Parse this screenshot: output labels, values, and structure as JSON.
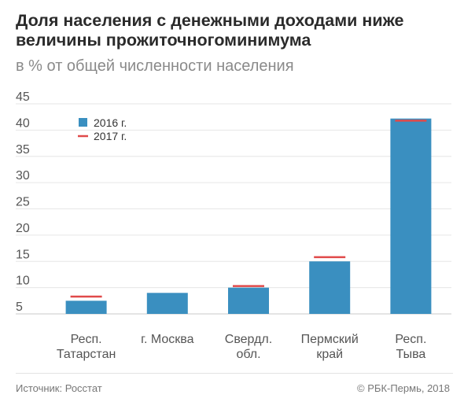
{
  "header": {
    "title": "Доля населения с денежными доходами ниже величины прожиточногоминимума",
    "subtitle": "в % от общей численности населения"
  },
  "footer": {
    "source": "Источник: Росстат",
    "copyright": "© РБК-Пермь, 2018"
  },
  "colors": {
    "bar_2016": "#3a8fc0",
    "marker_2017": "#e04a4a",
    "grid": "#e6e6e6",
    "axis": "#c8c8c8"
  },
  "chart_data": {
    "type": "bar",
    "categories": [
      [
        "Респ.",
        "Татарстан"
      ],
      [
        "г. Москва"
      ],
      [
        "Свердл.",
        "обл."
      ],
      [
        "Пермский",
        "край"
      ],
      [
        "Респ.",
        "Тыва"
      ]
    ],
    "series": [
      {
        "name": "2016 г.",
        "kind": "bar",
        "values": [
          7.5,
          9.0,
          10.0,
          15.0,
          42.2
        ]
      },
      {
        "name": "2017 г.",
        "kind": "marker",
        "values": [
          8.3,
          null,
          10.3,
          15.8,
          41.8
        ]
      }
    ],
    "ylim": [
      5,
      45
    ],
    "yticks": [
      5,
      10,
      15,
      20,
      25,
      30,
      35,
      40,
      45
    ],
    "grid": true,
    "legend_position": "top-left"
  }
}
